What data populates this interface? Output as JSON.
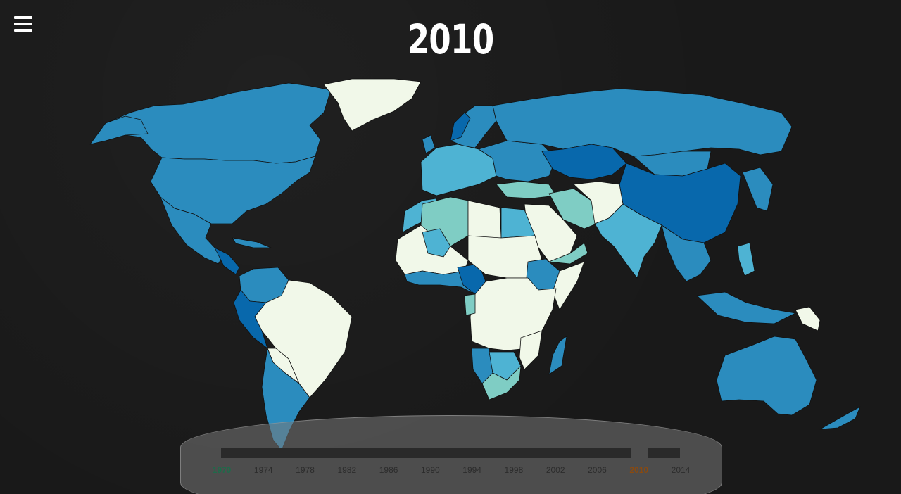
{
  "header": {
    "year": "2010",
    "menu_icon": "hamburger-menu-icon"
  },
  "timeline": {
    "start_year": "1970",
    "current_year": "2010",
    "end_year": "2014",
    "ticks": [
      "1970",
      "1974",
      "1978",
      "1982",
      "1986",
      "1990",
      "1994",
      "1998",
      "2002",
      "2006",
      "2010",
      "2014"
    ],
    "start_color": "#1e6b4a",
    "current_color": "#8a4a10"
  },
  "map": {
    "palette": {
      "lightest": "#f1f8e9",
      "teal": "#7fcdc4",
      "light_blue": "#4eb3d3",
      "medium_blue": "#2b8cbe",
      "dark_blue": "#0868ac"
    }
  }
}
